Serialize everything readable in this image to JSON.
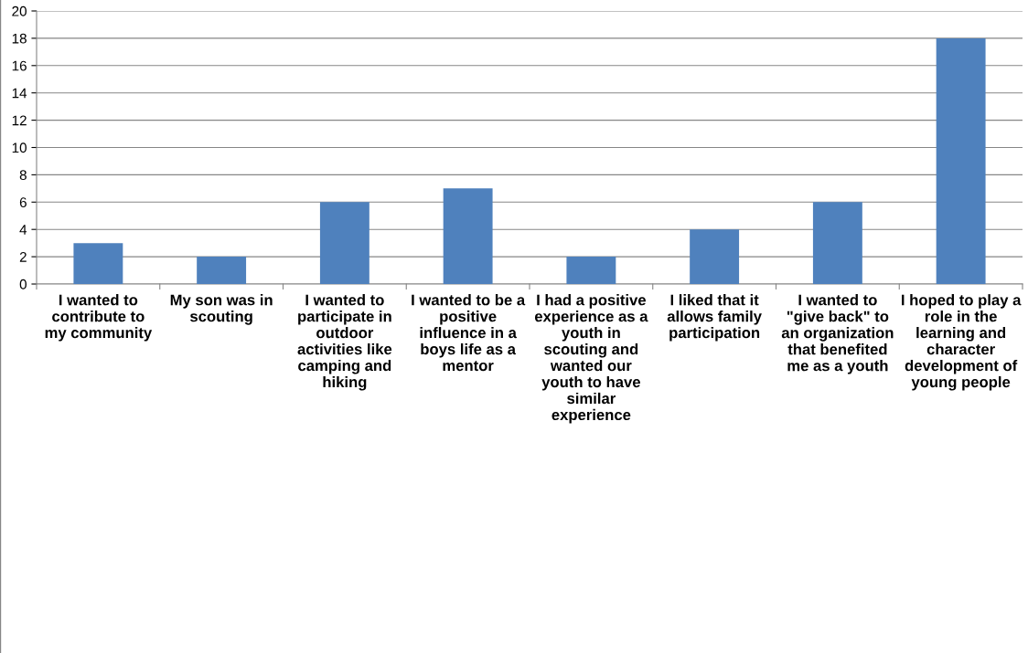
{
  "chart_data": {
    "type": "bar",
    "categories": [
      "I wanted to\ncontribute to\nmy community",
      "My son was in\nscouting",
      "I wanted to\nparticipate in\noutdoor\nactivities like\ncamping and\nhiking",
      "I wanted to be a\npositive\ninfluence in a\nboys life as a\nmentor",
      "I had a positive\nexperience as a\nyouth in\nscouting and\nwanted our\nyouth to have\nsimilar\nexperience",
      "I liked that it\nallows family\nparticipation",
      "I wanted to\n\"give back\" to\nan organization\nthat benefited\nme as a youth",
      "I hoped to play a\nrole in the\nlearning and\ncharacter\ndevelopment of\nyoung people"
    ],
    "values": [
      3,
      2,
      6,
      7,
      2,
      4,
      6,
      18
    ],
    "color": "#4f81bd",
    "ylim": [
      0,
      20
    ],
    "yticks": [
      0,
      2,
      4,
      6,
      8,
      10,
      12,
      14,
      16,
      18,
      20
    ],
    "grid": "y",
    "legend": false
  }
}
